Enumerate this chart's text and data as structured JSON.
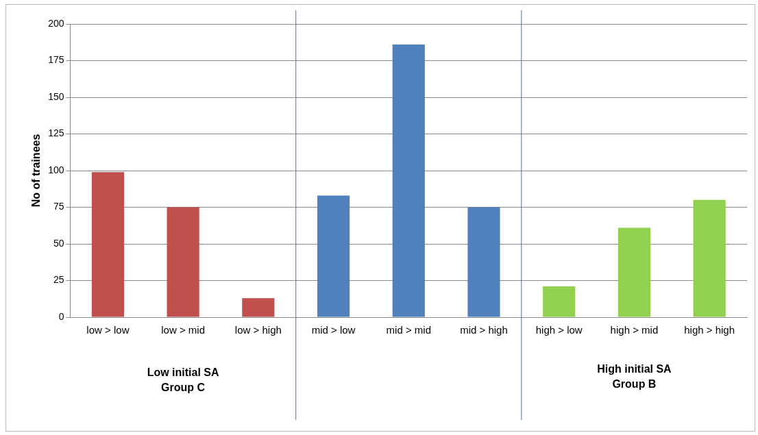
{
  "chart_data": {
    "type": "bar",
    "ylabel": "No of trainees",
    "categories": [
      "low > low",
      "low > mid",
      "low > high",
      "mid > low",
      "mid > mid",
      "mid > high",
      "high > low",
      "high > mid",
      "high > high"
    ],
    "values": [
      99,
      75,
      13,
      83,
      186,
      75,
      21,
      61,
      80
    ],
    "colors": [
      "#c0504d",
      "#c0504d",
      "#c0504d",
      "#4f81bd",
      "#4f81bd",
      "#4f81bd",
      "#92d050",
      "#92d050",
      "#92d050"
    ],
    "ylim": [
      0,
      200
    ],
    "yticks": [
      0,
      25,
      50,
      75,
      100,
      125,
      150,
      175,
      200
    ],
    "grid": "y",
    "legend": false,
    "annotations": [
      "Low initial SA\nGroup C",
      "High initial SA\nGroup B"
    ]
  }
}
